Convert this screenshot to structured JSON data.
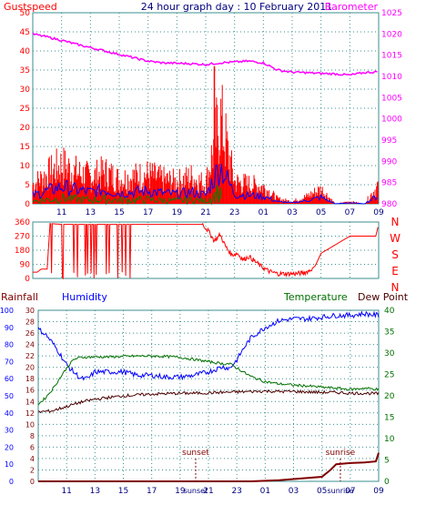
{
  "header": {
    "gustspeed_label": "Gustspeed",
    "title": "24 hour graph day : 10 February 2011",
    "barometer_label": "Barometer"
  },
  "colors": {
    "background": "#ffffff",
    "plot_bg": "#ffffff",
    "grid": "#3d8f8f",
    "gust": "#ff0000",
    "wind_avg": "#0000ff",
    "wind_green": "#008000",
    "barometer": "#ff00ff",
    "direction": "#ff0000",
    "humidity": "#0000ff",
    "temperature": "#007000",
    "dewpoint": "#4a0000",
    "rainfall": "#800000",
    "axis_left": "#ff0000",
    "axis_right": "#ff00ff",
    "axis_time": "#000080"
  },
  "chart_data": [
    {
      "type": "line",
      "name": "wind-barometer",
      "left_axis": {
        "label": "Gustspeed",
        "ticks": [
          "0",
          "5",
          "10",
          "15",
          "20",
          "25",
          "30",
          "35",
          "40",
          "45",
          "50"
        ],
        "ylim": [
          0,
          50
        ]
      },
      "right_axis": {
        "label": "Barometer",
        "ticks": [
          "980",
          "985",
          "990",
          "995",
          "1000",
          "1005",
          "1010",
          "1015",
          "1020",
          "1025"
        ],
        "ylim": [
          980,
          1025
        ]
      },
      "x_ticks": [
        "11",
        "13",
        "15",
        "17",
        "19",
        "21",
        "23",
        "01",
        "03",
        "05",
        "07",
        "09"
      ],
      "barometer": {
        "x": [
          9.0,
          10.0,
          11.0,
          12.0,
          13.0,
          14.0,
          15.0,
          16.0,
          17.0,
          18.0,
          19.0,
          20.0,
          21.0,
          22.0,
          23.0,
          24.0,
          25.0,
          26.0,
          27.0,
          28.0,
          29.0,
          30.0,
          31.0,
          32.0,
          33.0
        ],
        "values": [
          1020.0,
          1019.3,
          1018.5,
          1017.6,
          1016.8,
          1016.0,
          1015.2,
          1014.4,
          1013.6,
          1013.2,
          1013.1,
          1013.0,
          1012.8,
          1013.2,
          1013.4,
          1013.6,
          1013.2,
          1011.5,
          1011.0,
          1010.9,
          1010.7,
          1010.6,
          1010.3,
          1010.9,
          1011.1
        ]
      },
      "gust_peak": {
        "x": 21.6,
        "value": 36
      },
      "gust_profile": {
        "x": [
          9.0,
          10.0,
          11.0,
          12.0,
          13.0,
          14.0,
          15.0,
          16.0,
          17.0,
          18.0,
          19.0,
          20.0,
          21.0,
          22.0,
          23.0,
          24.0,
          25.0,
          26.0,
          27.0,
          28.0,
          29.0,
          30.0,
          31.0,
          32.0,
          33.0
        ],
        "max": [
          8,
          12,
          16,
          13,
          11,
          13,
          10,
          11,
          12,
          10,
          9,
          11,
          8,
          36,
          9,
          8,
          7,
          2,
          1,
          3,
          6,
          0,
          1,
          0,
          8
        ]
      }
    },
    {
      "type": "line",
      "name": "wind-direction",
      "left_axis": {
        "ticks": [
          "0",
          "90",
          "180",
          "270",
          "360"
        ],
        "ylim": [
          0,
          360
        ]
      },
      "right_axis": {
        "ticks": [
          "N",
          "W",
          "S",
          "E",
          "N"
        ]
      },
      "direction": {
        "x": [
          9.0,
          9.3,
          9.6,
          10.0,
          10.2,
          11.0,
          12.0,
          13.0,
          14.0,
          15.0,
          16.0,
          17.0,
          18.0,
          19.0,
          20.0,
          20.8,
          21.2,
          21.6,
          22.0,
          22.4,
          22.8,
          23.2,
          23.6,
          24.0,
          24.4,
          24.8,
          25.4,
          26.0,
          26.6,
          27.2,
          27.8,
          28.2,
          28.6,
          29.0,
          31.0,
          32.0,
          32.8,
          33.0
        ],
        "values": [
          40,
          40,
          60,
          60,
          350,
          345,
          345,
          345,
          345,
          345,
          345,
          345,
          345,
          345,
          345,
          345,
          300,
          240,
          280,
          200,
          150,
          160,
          120,
          140,
          110,
          80,
          45,
          30,
          30,
          30,
          35,
          50,
          80,
          160,
          270,
          270,
          270,
          345
        ]
      }
    },
    {
      "type": "line",
      "name": "temp-humidity-rain",
      "axis_labels": {
        "rainfall": "Rainfall",
        "humidity": "Humidity",
        "temperature": "Temperature",
        "dewpoint": "Dew Point"
      },
      "humidity_axis": {
        "ticks": [
          "0",
          "10",
          "20",
          "30",
          "40",
          "50",
          "60",
          "70",
          "80",
          "90",
          "100"
        ],
        "ylim": [
          0,
          100
        ]
      },
      "rain_axis": {
        "ticks": [
          "0",
          "2",
          "4",
          "6",
          "8",
          "10",
          "12",
          "14",
          "16",
          "18",
          "20",
          "22",
          "24",
          "26",
          "28",
          "30"
        ],
        "ylim": [
          0,
          30
        ]
      },
      "temp_axis": {
        "ticks": [
          "0",
          "5",
          "10",
          "15",
          "20",
          "25",
          "30",
          "35",
          "40"
        ],
        "ylim": [
          0,
          40
        ]
      },
      "x_ticks": [
        "11",
        "13",
        "15",
        "17",
        "19",
        "21",
        "23",
        "01",
        "03",
        "05",
        "07",
        "09"
      ],
      "humidity": {
        "x": [
          9.0,
          9.5,
          10.0,
          10.5,
          11.0,
          11.5,
          12.0,
          12.5,
          13.0,
          14.0,
          15.0,
          16.0,
          17.0,
          18.0,
          19.0,
          20.0,
          21.0,
          22.0,
          22.5,
          23.0,
          23.5,
          24.0,
          25.0,
          26.0,
          27.0,
          28.0,
          29.0,
          30.0,
          31.0,
          32.0,
          33.0
        ],
        "values": [
          89,
          86,
          81,
          75,
          68,
          64,
          60,
          60,
          64,
          64,
          64,
          62,
          62,
          61,
          61,
          62,
          64,
          67,
          66,
          71,
          78,
          84,
          90,
          94,
          95,
          95,
          96,
          97,
          97,
          98,
          97
        ]
      },
      "temperature": {
        "x": [
          9.0,
          9.5,
          10.0,
          10.5,
          11.0,
          11.5,
          12.0,
          13.0,
          14.0,
          15.0,
          16.0,
          17.0,
          18.0,
          19.0,
          20.0,
          21.0,
          22.0,
          22.5,
          23.0,
          24.0,
          25.0,
          26.0,
          27.0,
          28.0,
          29.0,
          30.0,
          31.0,
          32.0,
          33.0
        ],
        "values": [
          18.0,
          19.5,
          21.5,
          24.0,
          26.5,
          28.5,
          29.0,
          29.1,
          29.1,
          29.2,
          29.3,
          29.3,
          29.2,
          29.0,
          28.5,
          28.0,
          27.5,
          27.5,
          26.5,
          24.5,
          23.3,
          22.8,
          22.5,
          22.3,
          22.0,
          21.8,
          21.5,
          21.8,
          21.5
        ]
      },
      "dewpoint": {
        "x": [
          9.0,
          10.0,
          11.0,
          12.0,
          13.0,
          14.0,
          15.0,
          16.0,
          17.0,
          18.0,
          19.0,
          20.0,
          21.0,
          22.0,
          23.0,
          24.0,
          25.0,
          26.0,
          27.0,
          28.0,
          29.0,
          30.0,
          31.0,
          32.0,
          33.0
        ],
        "values": [
          16.2,
          16.5,
          17.5,
          18.5,
          19.2,
          19.6,
          20.0,
          20.2,
          20.4,
          20.5,
          20.6,
          20.6,
          20.7,
          20.8,
          20.9,
          21.0,
          21.1,
          21.0,
          21.0,
          20.9,
          20.8,
          20.8,
          20.6,
          20.6,
          20.5
        ]
      },
      "rainfall": {
        "x": [
          9.0,
          24.0,
          26.0,
          27.0,
          29.0,
          29.6,
          30.0,
          31.0,
          32.0,
          32.8,
          33.0
        ],
        "values": [
          0,
          0,
          0.2,
          0.4,
          0.8,
          2.0,
          3.0,
          3.2,
          3.3,
          3.5,
          5.0
        ]
      },
      "annotations": [
        {
          "text": "sunset",
          "x": 20.1
        },
        {
          "text": "sunrise",
          "x": 30.3
        }
      ],
      "bottom_markers": [
        {
          "text": "sunset",
          "x": 20.1
        },
        {
          "text": "sunrise",
          "x": 30.3
        }
      ]
    }
  ]
}
